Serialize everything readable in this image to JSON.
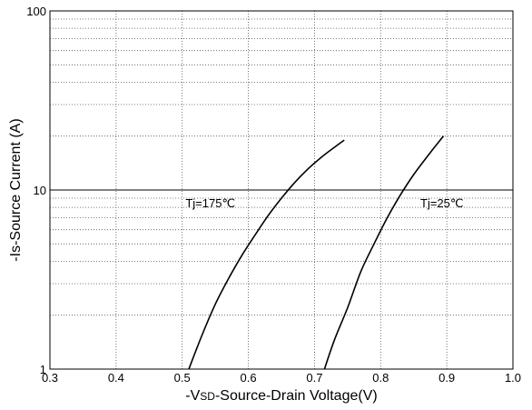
{
  "chart_data": {
    "type": "line",
    "xlabel": "-VSD-Source-Drain Voltage(V)",
    "xlabel_parts": {
      "prefix": "-V",
      "subscript": "SD",
      "suffix": "-Source-Drain Voltage(V)"
    },
    "ylabel": "-Is-Source Current (A)",
    "xlim": [
      0.3,
      1.0
    ],
    "ylim": [
      1,
      100
    ],
    "y_scale": "log",
    "grid": true,
    "x_ticks": [
      "0.3",
      "0.4",
      "0.5",
      "0.6",
      "0.7",
      "0.8",
      "0.9",
      "1.0"
    ],
    "y_ticks": [
      "1",
      "10",
      "100"
    ],
    "series": [
      {
        "name": "Tj=175℃",
        "x": [
          0.51,
          0.53,
          0.55,
          0.57,
          0.59,
          0.61,
          0.63,
          0.65,
          0.67,
          0.69,
          0.71,
          0.73,
          0.745
        ],
        "y": [
          1.0,
          1.55,
          2.3,
          3.2,
          4.3,
          5.6,
          7.2,
          9.0,
          11.0,
          13.1,
          15.2,
          17.3,
          19.0
        ]
      },
      {
        "name": "Tj=25℃",
        "x": [
          0.715,
          0.73,
          0.75,
          0.77,
          0.79,
          0.81,
          0.83,
          0.85,
          0.87,
          0.89,
          0.895
        ],
        "y": [
          1.0,
          1.45,
          2.2,
          3.5,
          5.0,
          7.0,
          9.4,
          12.2,
          15.3,
          19.0,
          20.0
        ]
      }
    ],
    "annotations": [
      {
        "text": "Tj=175℃",
        "x": 0.505,
        "y": 8.0
      },
      {
        "text": "Tj=25℃",
        "x": 0.86,
        "y": 8.0
      }
    ]
  }
}
